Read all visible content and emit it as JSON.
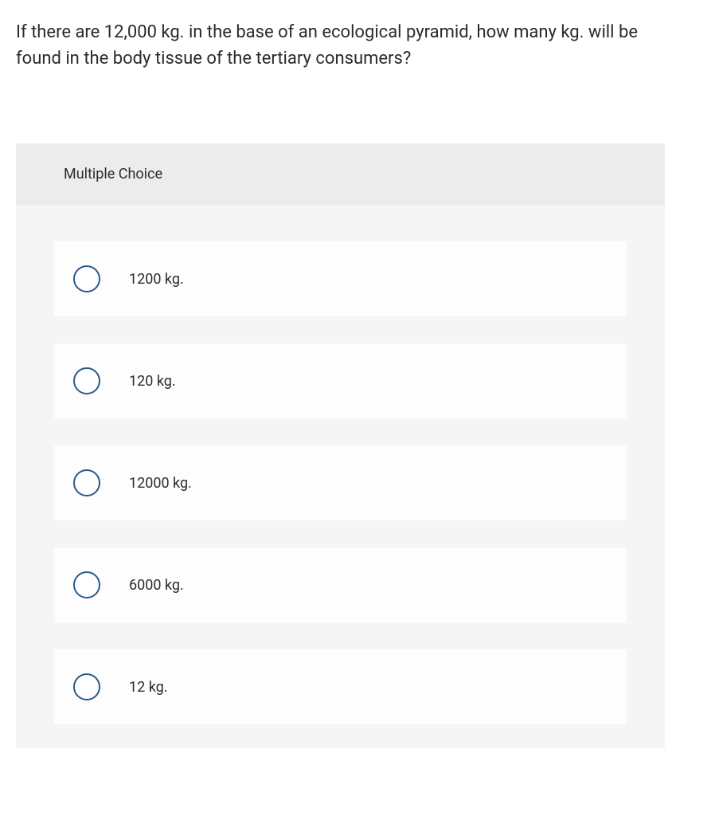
{
  "question": {
    "text": "If there are 12,000 kg. in the base of an ecological pyramid, how many kg. will be found in the body tissue of the tertiary consumers?"
  },
  "mc": {
    "header": "Multiple Choice",
    "options": [
      {
        "label": "1200 kg."
      },
      {
        "label": "120 kg."
      },
      {
        "label": "12000 kg."
      },
      {
        "label": "6000 kg."
      },
      {
        "label": "12 kg."
      }
    ]
  },
  "style": {
    "radio_border_color": "#2a5a8a",
    "panel_bg": "#f5f5f5",
    "header_bg": "#ececec",
    "option_bg": "#fdfdfd",
    "text_color": "#2b2b2b",
    "question_fontsize": 22,
    "option_fontsize": 18
  }
}
